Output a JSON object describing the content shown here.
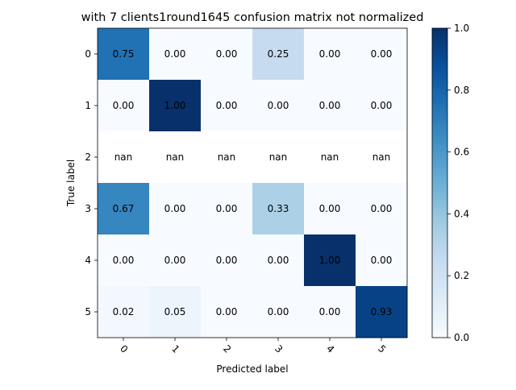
{
  "chart_data": {
    "type": "heatmap",
    "title": "with 7 clients1round1645 confusion matrix not normalized",
    "xlabel": "Predicted label",
    "ylabel": "True label",
    "x_categories": [
      "0",
      "1",
      "2",
      "3",
      "4",
      "5"
    ],
    "y_categories": [
      "0",
      "1",
      "2",
      "3",
      "4",
      "5"
    ],
    "values": [
      [
        0.75,
        0.0,
        0.0,
        0.25,
        0.0,
        0.0
      ],
      [
        0.0,
        1.0,
        0.0,
        0.0,
        0.0,
        0.0
      ],
      [
        null,
        null,
        null,
        null,
        null,
        null
      ],
      [
        0.67,
        0.0,
        0.0,
        0.33,
        0.0,
        0.0
      ],
      [
        0.0,
        0.0,
        0.0,
        0.0,
        1.0,
        0.0
      ],
      [
        0.02,
        0.05,
        0.0,
        0.0,
        0.0,
        0.93
      ]
    ],
    "cell_labels": [
      [
        "0.75",
        "0.00",
        "0.00",
        "0.25",
        "0.00",
        "0.00"
      ],
      [
        "0.00",
        "1.00",
        "0.00",
        "0.00",
        "0.00",
        "0.00"
      ],
      [
        "nan",
        "nan",
        "nan",
        "nan",
        "nan",
        "nan"
      ],
      [
        "0.67",
        "0.00",
        "0.00",
        "0.33",
        "0.00",
        "0.00"
      ],
      [
        "0.00",
        "0.00",
        "0.00",
        "0.00",
        "1.00",
        "0.00"
      ],
      [
        "0.02",
        "0.05",
        "0.00",
        "0.00",
        "0.00",
        "0.93"
      ]
    ],
    "colormap": "Blues",
    "colorbar": {
      "range": [
        0.0,
        1.0
      ],
      "ticks": [
        0.0,
        0.2,
        0.4,
        0.6,
        0.8,
        1.0
      ],
      "tick_labels": [
        "0.0",
        "0.2",
        "0.4",
        "0.6",
        "0.8",
        "1.0"
      ]
    },
    "x_tick_rotation_deg": 45,
    "grid": false
  }
}
